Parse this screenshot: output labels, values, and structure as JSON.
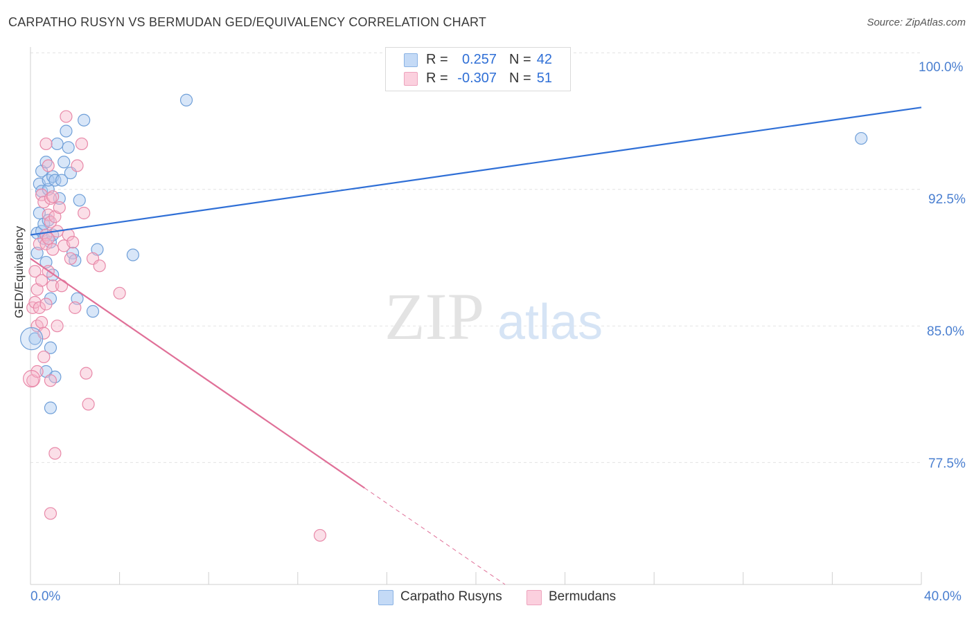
{
  "title": "CARPATHO RUSYN VS BERMUDAN GED/EQUIVALENCY CORRELATION CHART",
  "source": "Source: ZipAtlas.com",
  "watermark": {
    "zip": "ZIP",
    "atlas": "atlas"
  },
  "legend": {
    "r_label": "R =",
    "n_label": "N =",
    "series": [
      {
        "name": "Carpatho Rusyns",
        "r": "0.257",
        "n": "42",
        "color": "#a8c8f0",
        "stroke": "#6f9fd8"
      },
      {
        "name": "Bermudans",
        "r": "-0.307",
        "n": "51",
        "color": "#f7b8cc",
        "stroke": "#e888a8"
      }
    ]
  },
  "axes": {
    "ylabel": "GED/Equivalency",
    "x_min_label": "0.0%",
    "x_max_label": "40.0%",
    "y_ticks": [
      "100.0%",
      "92.5%",
      "85.0%",
      "77.5%"
    ]
  },
  "chart_data": {
    "type": "scatter",
    "title": "CARPATHO RUSYN VS BERMUDAN GED/EQUIVALENCY CORRELATION CHART",
    "xlabel": "",
    "ylabel": "GED/Equivalency",
    "xlim": [
      0,
      40
    ],
    "ylim": [
      70.8,
      101.0
    ],
    "y_gridlines": [
      100.0,
      92.5,
      85.0,
      77.5
    ],
    "series": [
      {
        "name": "Carpatho Rusyns",
        "color": "#6f9fd8",
        "trend": {
          "x0": 0.0,
          "y0": 90.0,
          "x1": 40.0,
          "y1": 97.0
        },
        "points": [
          [
            0.2,
            84.3
          ],
          [
            0.3,
            90.1
          ],
          [
            0.3,
            89.0
          ],
          [
            0.4,
            92.8
          ],
          [
            0.4,
            91.2
          ],
          [
            0.5,
            90.2
          ],
          [
            0.5,
            93.5
          ],
          [
            0.5,
            92.4
          ],
          [
            0.6,
            90.6
          ],
          [
            0.6,
            89.8
          ],
          [
            0.7,
            88.5
          ],
          [
            0.7,
            82.5
          ],
          [
            0.7,
            94.0
          ],
          [
            0.8,
            92.5
          ],
          [
            0.8,
            90.8
          ],
          [
            0.8,
            93.0
          ],
          [
            0.9,
            89.6
          ],
          [
            0.9,
            86.5
          ],
          [
            0.9,
            83.8
          ],
          [
            0.9,
            80.5
          ],
          [
            1.0,
            93.2
          ],
          [
            1.0,
            87.8
          ],
          [
            1.0,
            90.0
          ],
          [
            1.1,
            93.0
          ],
          [
            1.1,
            82.2
          ],
          [
            1.2,
            95.0
          ],
          [
            1.3,
            92.0
          ],
          [
            1.4,
            93.0
          ],
          [
            1.5,
            94.0
          ],
          [
            1.6,
            95.7
          ],
          [
            1.7,
            94.8
          ],
          [
            1.8,
            93.4
          ],
          [
            1.9,
            89.0
          ],
          [
            2.0,
            88.6
          ],
          [
            2.1,
            86.5
          ],
          [
            2.2,
            91.9
          ],
          [
            2.4,
            96.3
          ],
          [
            2.8,
            85.8
          ],
          [
            3.0,
            89.2
          ],
          [
            4.6,
            88.9
          ],
          [
            7.0,
            97.4
          ],
          [
            37.3,
            95.3
          ]
        ]
      },
      {
        "name": "Bermudans",
        "color": "#e888a8",
        "trend": {
          "x0": 0.0,
          "y0": 88.7,
          "x1": 15.0,
          "y1": 76.1,
          "dash_to_x": 40.0
        },
        "points": [
          [
            0.1,
            82.0
          ],
          [
            0.1,
            86.0
          ],
          [
            0.2,
            88.0
          ],
          [
            0.2,
            86.3
          ],
          [
            0.3,
            87.0
          ],
          [
            0.3,
            82.5
          ],
          [
            0.3,
            85.0
          ],
          [
            0.4,
            86.0
          ],
          [
            0.4,
            89.5
          ],
          [
            0.5,
            87.5
          ],
          [
            0.5,
            92.2
          ],
          [
            0.5,
            85.2
          ],
          [
            0.6,
            83.3
          ],
          [
            0.6,
            84.6
          ],
          [
            0.6,
            91.8
          ],
          [
            0.7,
            95.0
          ],
          [
            0.7,
            90.0
          ],
          [
            0.7,
            89.5
          ],
          [
            0.7,
            86.2
          ],
          [
            0.8,
            89.8
          ],
          [
            0.8,
            88.0
          ],
          [
            0.8,
            93.8
          ],
          [
            0.8,
            91.1
          ],
          [
            0.9,
            92.0
          ],
          [
            0.9,
            90.7
          ],
          [
            0.9,
            82.0
          ],
          [
            0.9,
            74.7
          ],
          [
            1.0,
            92.1
          ],
          [
            1.0,
            87.2
          ],
          [
            1.0,
            89.2
          ],
          [
            1.1,
            91.0
          ],
          [
            1.2,
            85.0
          ],
          [
            1.2,
            90.2
          ],
          [
            1.3,
            91.5
          ],
          [
            1.4,
            87.2
          ],
          [
            1.5,
            89.4
          ],
          [
            1.6,
            96.5
          ],
          [
            1.7,
            90.0
          ],
          [
            1.8,
            88.7
          ],
          [
            1.9,
            89.6
          ],
          [
            2.0,
            86.0
          ],
          [
            2.1,
            93.8
          ],
          [
            2.3,
            95.0
          ],
          [
            2.4,
            91.2
          ],
          [
            2.5,
            82.4
          ],
          [
            2.6,
            80.7
          ],
          [
            2.8,
            88.7
          ],
          [
            1.1,
            78.0
          ],
          [
            3.1,
            88.3
          ],
          [
            4.0,
            86.8
          ],
          [
            13.0,
            73.5
          ]
        ]
      }
    ]
  }
}
